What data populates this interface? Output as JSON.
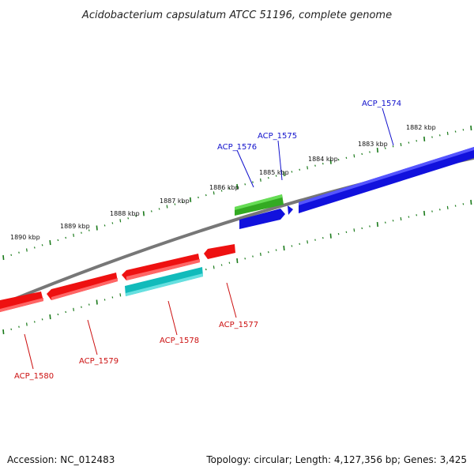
{
  "title": "Acidobacterium capsulatum ATCC 51196, complete genome",
  "footer": {
    "accession": "Accession: NC_012483",
    "summary": "Topology: circular; Length: 4,127,356 bp; Genes: 3,425"
  },
  "colors": {
    "forward_label": "#1010cc",
    "reverse_label": "#cc1010",
    "backbone": "#777777",
    "tick": "#1a7a1a",
    "red_gene": "#ee1111",
    "blue_gene": "#1111dd",
    "green_gene": "#33aa22",
    "cyan_gene": "#11bbbb"
  },
  "scale_ticks": [
    "1882 kbp",
    "1883 kbp",
    "1884 kbp",
    "1885 kbp",
    "1886 kbp",
    "1887 kbp",
    "1888 kbp",
    "1889 kbp",
    "1890 kbp"
  ],
  "genes": [
    {
      "name": "ACP_1574",
      "strand": "forward"
    },
    {
      "name": "ACP_1575",
      "strand": "forward"
    },
    {
      "name": "ACP_1576",
      "strand": "forward"
    },
    {
      "name": "ACP_1577",
      "strand": "reverse"
    },
    {
      "name": "ACP_1578",
      "strand": "reverse"
    },
    {
      "name": "ACP_1579",
      "strand": "reverse"
    },
    {
      "name": "ACP_1580",
      "strand": "reverse"
    }
  ]
}
